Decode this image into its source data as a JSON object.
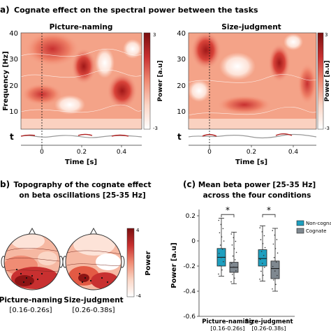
{
  "panel_a": {
    "letter": "a)",
    "title": "Cognate effect on the spectral power between the tasks",
    "ylabel": "Frequency [Hz]",
    "xlabel": "Time [s]",
    "t_label": "t",
    "cbar_label": "Power [a.u]",
    "cbar_max": "3",
    "cbar_min": "-3",
    "y_ticks": [
      "40",
      "30",
      "20",
      "10"
    ],
    "x_ticks": [
      "0",
      "0.2",
      "0.4"
    ],
    "plot_titles": [
      "Picture-naming",
      "Size-judgment"
    ]
  },
  "panel_b": {
    "letter": "b)",
    "title_line1": "Topography of the cognate effect",
    "title_line2": "on beta oscillations [25-35 Hz]",
    "cbar_label": "Power",
    "cbar_max": "4",
    "cbar_min": "-4",
    "maps": [
      {
        "label": "Picture-naming",
        "window": "[0.16-0.26s]"
      },
      {
        "label": "Size-judgment",
        "window": "[0.26-0.38s]"
      }
    ]
  },
  "chart_data": [
    {
      "type": "heatmap",
      "title": "Picture-naming",
      "xlabel": "Time [s]",
      "ylabel": "Frequency [Hz]",
      "xlim": [
        -0.1,
        0.5
      ],
      "ylim": [
        5,
        40
      ],
      "colorbar": {
        "label": "Power [a.u]",
        "range": [
          -3,
          3
        ]
      },
      "peaks": [
        {
          "time": 0.2,
          "freq": 30,
          "power": 2.8
        },
        {
          "time": -0.05,
          "freq": 36,
          "power": 2.2
        },
        {
          "time": 0.3,
          "freq": 20,
          "power": 2.0
        }
      ]
    },
    {
      "type": "heatmap",
      "title": "Size-judgment",
      "xlabel": "Time [s]",
      "ylabel": "Frequency [Hz]",
      "xlim": [
        -0.1,
        0.5
      ],
      "ylim": [
        5,
        40
      ],
      "colorbar": {
        "label": "Power [a.u]",
        "range": [
          -3,
          3
        ]
      },
      "peaks": [
        {
          "time": 0.0,
          "freq": 34,
          "power": 2.6
        },
        {
          "time": 0.36,
          "freq": 30,
          "power": 2.4
        },
        {
          "time": 0.25,
          "freq": 13,
          "power": 1.8
        }
      ]
    },
    {
      "type": "box",
      "title_line1": "Mean beta power [25-35 Hz]",
      "title_line2": "across the four conditions",
      "panel_letter": "(c)",
      "ylabel": "Power [a.u]",
      "ylim": [
        -0.6,
        0.25
      ],
      "yticks": [
        "0.2",
        "0",
        "-0.2",
        "-0.4",
        "-0.6"
      ],
      "ytick_values": [
        0.2,
        0,
        -0.2,
        -0.4,
        -0.6
      ],
      "groups": [
        {
          "label": "Picture-naming",
          "window": "[0.16-0.26s]",
          "significance": "*"
        },
        {
          "label": "Size-judgment",
          "window": "[0.26-0.38s]",
          "significance": "*"
        }
      ],
      "series": [
        {
          "name": "Non-cognate",
          "color": "#1e9fbf",
          "boxes": [
            {
              "whislo": -0.28,
              "q1": -0.2,
              "med": -0.13,
              "q3": -0.06,
              "whishi": 0.18
            },
            {
              "whislo": -0.32,
              "q1": -0.2,
              "med": -0.14,
              "q3": -0.07,
              "whishi": 0.12
            }
          ]
        },
        {
          "name": "Cognate",
          "color": "#7f8890",
          "boxes": [
            {
              "whislo": -0.34,
              "q1": -0.25,
              "med": -0.21,
              "q3": -0.17,
              "whishi": 0.07
            },
            {
              "whislo": -0.4,
              "q1": -0.3,
              "med": -0.22,
              "q3": -0.16,
              "whishi": 0.1
            }
          ]
        }
      ]
    }
  ]
}
